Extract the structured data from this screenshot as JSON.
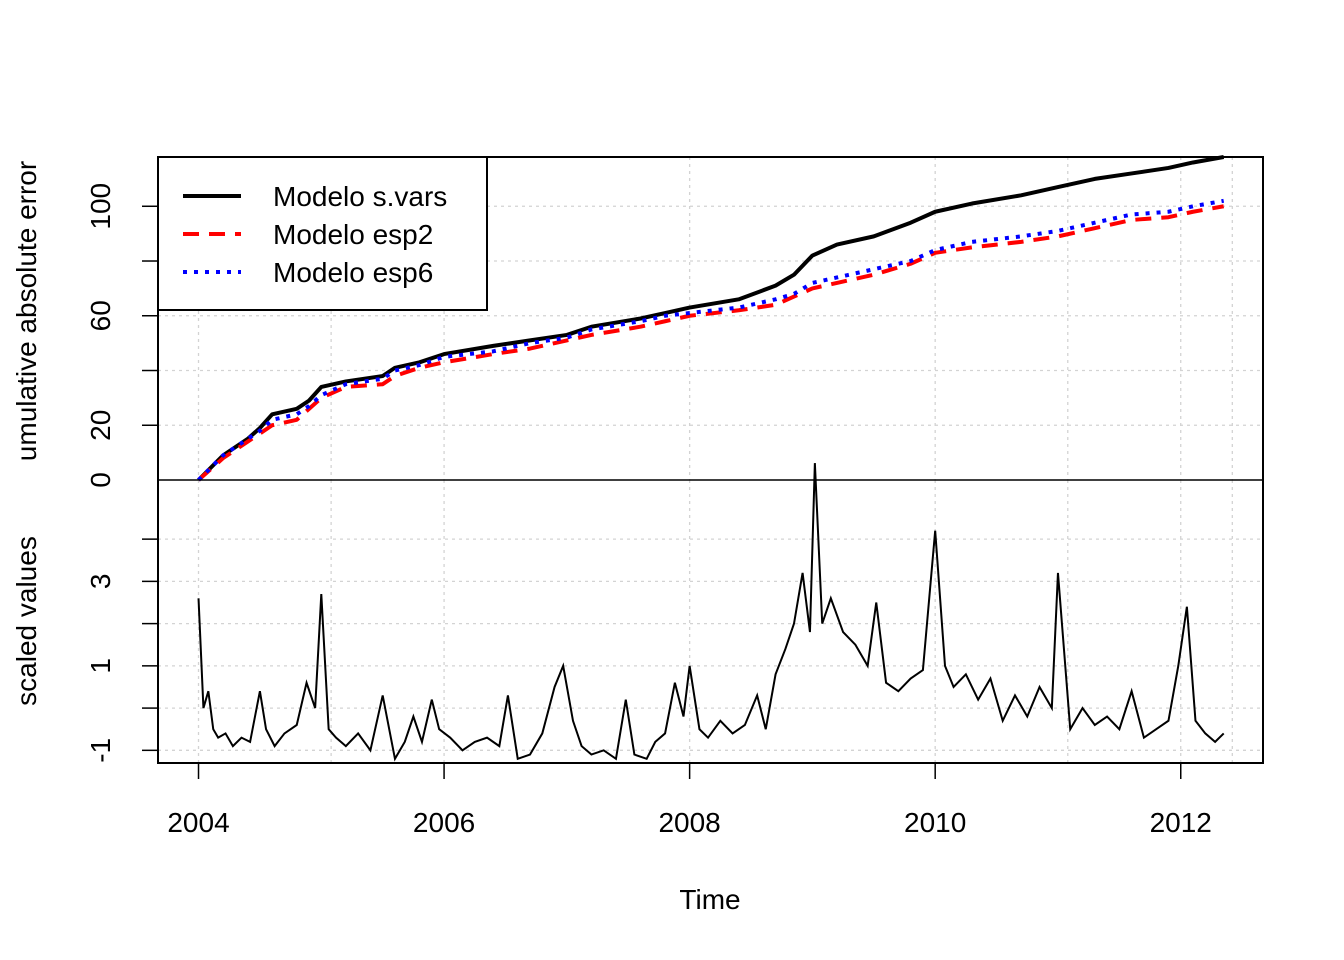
{
  "chart_data": [
    {
      "type": "line",
      "panel": "top",
      "ylabel": "umulative absolute error",
      "ylim": [
        0,
        118
      ],
      "yticks": [
        0,
        20,
        60,
        100
      ],
      "grid": true,
      "legend_position": "top-left",
      "x": [
        2004.0,
        2004.2,
        2004.4,
        2004.5,
        2004.6,
        2004.8,
        2004.9,
        2005.0,
        2005.2,
        2005.5,
        2005.6,
        2005.8,
        2006.0,
        2006.4,
        2006.7,
        2007.0,
        2007.2,
        2007.6,
        2007.8,
        2008.0,
        2008.4,
        2008.7,
        2008.85,
        2009.0,
        2009.2,
        2009.5,
        2009.8,
        2010.0,
        2010.3,
        2010.7,
        2011.0,
        2011.3,
        2011.6,
        2011.9,
        2012.1,
        2012.35
      ],
      "series": [
        {
          "name": "Modelo s.vars",
          "color": "#000000",
          "style": "solid",
          "values": [
            0,
            9,
            15,
            19,
            24,
            26,
            29,
            34,
            36,
            38,
            41,
            43,
            46,
            49,
            51,
            53,
            56,
            59,
            61,
            63,
            66,
            71,
            75,
            82,
            86,
            89,
            94,
            98,
            101,
            104,
            107,
            110,
            112,
            114,
            116,
            118
          ]
        },
        {
          "name": "Modelo esp2",
          "color": "#ff0000",
          "style": "dashed",
          "values": [
            0,
            8,
            14,
            17,
            20,
            22,
            26,
            30,
            34,
            35,
            38,
            41,
            43,
            46,
            48,
            51,
            53,
            56,
            58,
            60,
            62,
            64,
            67,
            70,
            72,
            75,
            79,
            83,
            85,
            87,
            89,
            92,
            95,
            96,
            98,
            100
          ]
        },
        {
          "name": "Modelo esp6",
          "color": "#0000ff",
          "style": "dotted",
          "values": [
            0,
            9,
            15,
            18,
            22,
            24,
            27,
            31,
            35,
            37,
            40,
            42,
            45,
            47,
            50,
            52,
            55,
            58,
            60,
            61,
            63,
            66,
            68,
            72,
            74,
            77,
            80,
            84,
            87,
            89,
            91,
            94,
            97,
            98,
            100,
            102
          ]
        }
      ]
    },
    {
      "type": "line",
      "panel": "bottom",
      "xlabel": "Time",
      "ylabel": "scaled values",
      "ylim": [
        -1.3,
        5.4
      ],
      "yticks": [
        -1,
        1,
        3
      ],
      "xticks": [
        2004,
        2006,
        2008,
        2010,
        2012
      ],
      "xlim": [
        2003.67,
        2012.67
      ],
      "grid": true,
      "x": [
        2004.0,
        2004.04,
        2004.08,
        2004.12,
        2004.16,
        2004.22,
        2004.28,
        2004.35,
        2004.42,
        2004.5,
        2004.55,
        2004.62,
        2004.7,
        2004.8,
        2004.88,
        2004.95,
        2005.0,
        2005.06,
        2005.12,
        2005.2,
        2005.3,
        2005.4,
        2005.5,
        2005.6,
        2005.68,
        2005.75,
        2005.82,
        2005.9,
        2005.96,
        2006.05,
        2006.15,
        2006.25,
        2006.35,
        2006.45,
        2006.52,
        2006.6,
        2006.7,
        2006.8,
        2006.9,
        2006.97,
        2007.05,
        2007.12,
        2007.2,
        2007.3,
        2007.4,
        2007.48,
        2007.55,
        2007.65,
        2007.72,
        2007.8,
        2007.88,
        2007.95,
        2008.0,
        2008.08,
        2008.15,
        2008.25,
        2008.35,
        2008.45,
        2008.55,
        2008.62,
        2008.7,
        2008.78,
        2008.85,
        2008.92,
        2008.98,
        2009.02,
        2009.08,
        2009.15,
        2009.25,
        2009.35,
        2009.45,
        2009.52,
        2009.6,
        2009.7,
        2009.8,
        2009.9,
        2010.0,
        2010.08,
        2010.15,
        2010.25,
        2010.35,
        2010.45,
        2010.55,
        2010.65,
        2010.75,
        2010.85,
        2010.95,
        2011.0,
        2011.1,
        2011.2,
        2011.3,
        2011.4,
        2011.5,
        2011.6,
        2011.7,
        2011.8,
        2011.9,
        2011.98,
        2012.05,
        2012.12,
        2012.2,
        2012.28,
        2012.35
      ],
      "series": [
        {
          "name": "",
          "color": "#000000",
          "style": "solid",
          "values": [
            2.6,
            0.0,
            0.4,
            -0.5,
            -0.7,
            -0.6,
            -0.9,
            -0.7,
            -0.8,
            0.4,
            -0.5,
            -0.9,
            -0.6,
            -0.4,
            0.6,
            0.0,
            2.7,
            -0.5,
            -0.7,
            -0.9,
            -0.6,
            -1.0,
            0.3,
            -1.2,
            -0.8,
            -0.2,
            -0.8,
            0.2,
            -0.5,
            -0.7,
            -1.0,
            -0.8,
            -0.7,
            -0.9,
            0.3,
            -1.2,
            -1.1,
            -0.6,
            0.5,
            1.0,
            -0.3,
            -0.9,
            -1.1,
            -1.0,
            -1.2,
            0.2,
            -1.1,
            -1.2,
            -0.8,
            -0.6,
            0.6,
            -0.2,
            1.0,
            -0.5,
            -0.7,
            -0.3,
            -0.6,
            -0.4,
            0.3,
            -0.5,
            0.8,
            1.4,
            2.0,
            3.2,
            1.8,
            5.8,
            2.0,
            2.6,
            1.8,
            1.5,
            1.0,
            2.5,
            0.6,
            0.4,
            0.7,
            0.9,
            4.2,
            1.0,
            0.5,
            0.8,
            0.2,
            0.7,
            -0.3,
            0.3,
            -0.2,
            0.5,
            0.0,
            3.2,
            -0.5,
            0.0,
            -0.4,
            -0.2,
            -0.5,
            0.4,
            -0.7,
            -0.5,
            -0.3,
            1.0,
            2.4,
            -0.3,
            -0.6,
            -0.8,
            -0.6
          ]
        }
      ]
    }
  ],
  "legend": [
    {
      "label": "Modelo s.vars",
      "color": "#000000",
      "style": "solid"
    },
    {
      "label": "Modelo esp2",
      "color": "#ff0000",
      "style": "dashed"
    },
    {
      "label": "Modelo esp6",
      "color": "#0000ff",
      "style": "dotted"
    }
  ]
}
